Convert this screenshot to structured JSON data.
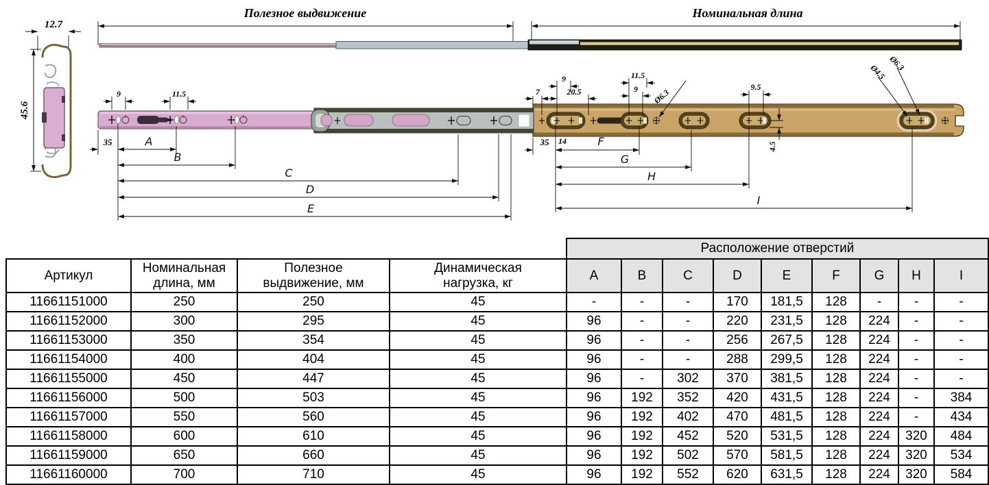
{
  "diagram": {
    "titles": {
      "useful_extension": "Полезное выдвижение",
      "nominal_length": "Номинальная длина"
    },
    "cross_section": {
      "width": "12.7",
      "height": "45.6"
    },
    "dims": {
      "n7": "7",
      "n9": "9",
      "n11_5": "11.5",
      "n14": "14",
      "n20_5": "20.5",
      "n35": "35",
      "n9_5": "9.5",
      "n4_5": "4.5",
      "dia6_3": "Ø6.3",
      "dia4_5": "Ø4.5",
      "A": "A",
      "B": "B",
      "C": "C",
      "D": "D",
      "E": "E",
      "F": "F",
      "G": "G",
      "H": "H",
      "I": "I"
    },
    "colors": {
      "inner_rail_pink": "#d9abce",
      "middle_rail_gray": "#b9c0bf",
      "outer_rail_tan": "#c9a466",
      "rail_edge_olive": "#3f4733",
      "slot_brown": "#55431a"
    }
  },
  "table": {
    "group_header": "Расположение отверстий",
    "main_columns": [
      {
        "l1": "Артикул",
        "l2": ""
      },
      {
        "l1": "Номинальная",
        "l2": "длина, мм"
      },
      {
        "l1": "Полезное",
        "l2": "выдвижение, мм"
      },
      {
        "l1": "Динамическая",
        "l2": "нагрузка, кг"
      }
    ],
    "hole_columns": [
      "A",
      "B",
      "C",
      "D",
      "E",
      "F",
      "G",
      "H",
      "I"
    ],
    "rows": [
      [
        "11661151000",
        "250",
        "250",
        "45",
        "-",
        "-",
        "-",
        "170",
        "181,5",
        "128",
        "-",
        "-",
        "-"
      ],
      [
        "11661152000",
        "300",
        "295",
        "45",
        "96",
        "-",
        "-",
        "220",
        "231,5",
        "128",
        "224",
        "-",
        "-"
      ],
      [
        "11661153000",
        "350",
        "354",
        "45",
        "96",
        "-",
        "-",
        "256",
        "267,5",
        "128",
        "224",
        "-",
        "-"
      ],
      [
        "11661154000",
        "400",
        "404",
        "45",
        "96",
        "-",
        "-",
        "288",
        "299,5",
        "128",
        "224",
        "-",
        "-"
      ],
      [
        "11661155000",
        "450",
        "447",
        "45",
        "96",
        "-",
        "302",
        "370",
        "381,5",
        "128",
        "224",
        "-",
        "-"
      ],
      [
        "11661156000",
        "500",
        "503",
        "45",
        "96",
        "192",
        "352",
        "420",
        "431,5",
        "128",
        "224",
        "-",
        "384"
      ],
      [
        "11661157000",
        "550",
        "560",
        "45",
        "96",
        "192",
        "402",
        "470",
        "481,5",
        "128",
        "224",
        "-",
        "434"
      ],
      [
        "11661158000",
        "600",
        "610",
        "45",
        "96",
        "192",
        "452",
        "520",
        "531,5",
        "128",
        "224",
        "320",
        "484"
      ],
      [
        "11661159000",
        "650",
        "660",
        "45",
        "96",
        "192",
        "502",
        "570",
        "581,5",
        "128",
        "224",
        "320",
        "534"
      ],
      [
        "11661160000",
        "700",
        "710",
        "45",
        "96",
        "192",
        "552",
        "620",
        "631,5",
        "128",
        "224",
        "320",
        "584"
      ]
    ]
  }
}
